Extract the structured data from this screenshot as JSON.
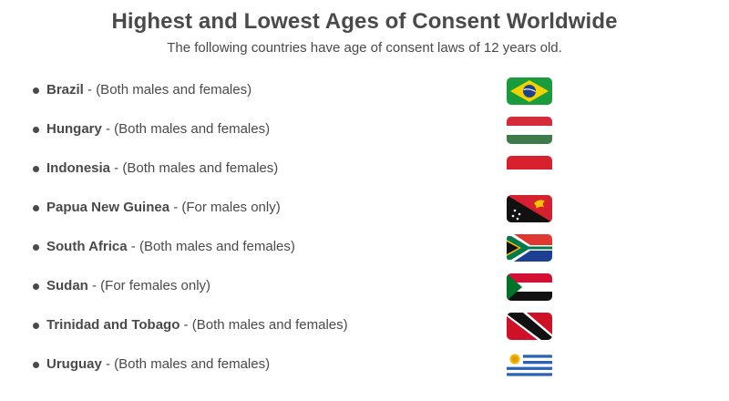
{
  "title": "Highest and Lowest Ages of Consent Worldwide",
  "subtitle": "The following countries have age of consent laws of 12 years old.",
  "items": [
    {
      "country": "Brazil",
      "detail": " - (Both males and females)",
      "flag_icon": "brazil-flag-icon"
    },
    {
      "country": "Hungary",
      "detail": " - (Both males and females)",
      "flag_icon": "hungary-flag-icon"
    },
    {
      "country": "Indonesia",
      "detail": " - (Both males and females)",
      "flag_icon": "indonesia-flag-icon"
    },
    {
      "country": "Papua New Guinea",
      "detail": " - (For males only)",
      "flag_icon": "papua-new-guinea-flag-icon"
    },
    {
      "country": "South Africa",
      "detail": " - (Both males and females)",
      "flag_icon": "south-africa-flag-icon"
    },
    {
      "country": "Sudan",
      "detail": " - (For females only)",
      "flag_icon": "sudan-flag-icon"
    },
    {
      "country": "Trinidad and Tobago",
      "detail": " - (Both males and females)",
      "flag_icon": "trinidad-and-tobago-flag-icon"
    },
    {
      "country": "Uruguay",
      "detail": " - (Both males and females)",
      "flag_icon": "uruguay-flag-icon"
    }
  ],
  "colors": {
    "text": "#4a4a4a",
    "background": "#ffffff"
  }
}
